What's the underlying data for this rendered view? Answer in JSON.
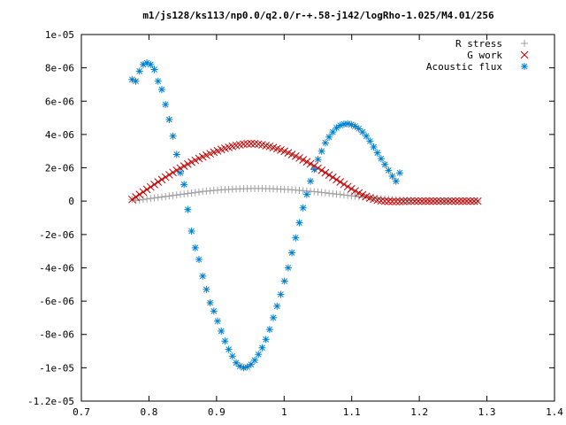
{
  "chart_data": {
    "type": "scatter",
    "title": "m1/js128/ks113/np0.0/q2.0/r-+.58-j142/logRho-1.025/M4.01/256",
    "xlabel": "",
    "ylabel": "",
    "xlim": [
      0.7,
      1.4
    ],
    "ylim": [
      -1.2e-05,
      1e-05
    ],
    "x_ticks": [
      0.7,
      0.8,
      0.9,
      1.0,
      1.1,
      1.2,
      1.3,
      1.4
    ],
    "x_tick_labels": [
      "0.7",
      "0.8",
      "0.9",
      "1",
      "1.1",
      "1.2",
      "1.3",
      "1.4"
    ],
    "y_ticks": [
      -1.2e-05,
      -1e-05,
      -8e-06,
      -6e-06,
      -4e-06,
      -2e-06,
      0,
      2e-06,
      4e-06,
      6e-06,
      8e-06,
      1e-05
    ],
    "y_tick_labels": [
      "-1.2e-05",
      "-1e-05",
      "-8e-06",
      "-6e-06",
      "-4e-06",
      "-2e-06",
      "0",
      "2e-06",
      "4e-06",
      "6e-06",
      "8e-06",
      "1e-05"
    ],
    "grid": false,
    "legend_position": "top-right",
    "x_start": 0.775,
    "x_step": 0.0055,
    "series": [
      {
        "name": "R stress",
        "marker": "plus",
        "color": "#a0a0a0",
        "values": [
          1e-07,
          4e-08,
          7e-08,
          1e-07,
          1.3e-07,
          1.6e-07,
          1.9e-07,
          2.2e-07,
          2.5e-07,
          2.8e-07,
          3.1e-07,
          3.4e-07,
          3.7e-07,
          4e-07,
          4.3e-07,
          4.6e-07,
          4.9e-07,
          5.2e-07,
          5.5e-07,
          5.8e-07,
          6e-07,
          6.2e-07,
          6.4e-07,
          6.6e-07,
          6.8e-07,
          6.9e-07,
          7.1e-07,
          7.2e-07,
          7.3e-07,
          7.4e-07,
          7.5e-07,
          7.5e-07,
          7.6e-07,
          7.6e-07,
          7.6e-07,
          7.6e-07,
          7.5e-07,
          7.5e-07,
          7.4e-07,
          7.3e-07,
          7.2e-07,
          7.1e-07,
          7e-07,
          6.8e-07,
          6.7e-07,
          6.5e-07,
          6.3e-07,
          6.1e-07,
          5.9e-07,
          5.7e-07,
          5.5e-07,
          5.2e-07,
          5e-07,
          4.7e-07,
          4.5e-07,
          4.2e-07,
          4e-07,
          3.7e-07,
          3.5e-07,
          3.2e-07,
          3e-07,
          2.7e-07,
          2.5e-07,
          2.3e-07,
          2.1e-07,
          1.9e-07,
          1.7e-07,
          1.5e-07,
          1.3e-07,
          1.2e-07,
          1e-07,
          9e-08,
          8e-08,
          6e-08,
          5e-08,
          4e-08,
          3e-08,
          2e-08,
          1e-08,
          0.0,
          0.0,
          0.0,
          0.0,
          0.0,
          0.0,
          0.0,
          0.0,
          0.0,
          0.0,
          0.0,
          0.0,
          0.0,
          0.0,
          0.0
        ]
      },
      {
        "name": "G work",
        "marker": "cross",
        "color": "#c00000",
        "values": [
          1e-07,
          2.5e-07,
          4e-07,
          5.5e-07,
          7e-07,
          8.5e-07,
          1e-06,
          1.15e-06,
          1.3e-06,
          1.44e-06,
          1.58e-06,
          1.72e-06,
          1.85e-06,
          1.98e-06,
          2.1e-06,
          2.22e-06,
          2.34e-06,
          2.45e-06,
          2.56e-06,
          2.66e-06,
          2.76e-06,
          2.85e-06,
          2.94e-06,
          3.02e-06,
          3.1e-06,
          3.17e-06,
          3.23e-06,
          3.29e-06,
          3.34e-06,
          3.38e-06,
          3.42e-06,
          3.44e-06,
          3.45e-06,
          3.44e-06,
          3.42e-06,
          3.38e-06,
          3.33e-06,
          3.28e-06,
          3.22e-06,
          3.15e-06,
          3.07e-06,
          2.99e-06,
          2.9e-06,
          2.8e-06,
          2.7e-06,
          2.59e-06,
          2.48e-06,
          2.36e-06,
          2.24e-06,
          2.11e-06,
          1.98e-06,
          1.85e-06,
          1.71e-06,
          1.57e-06,
          1.43e-06,
          1.29e-06,
          1.15e-06,
          1.01e-06,
          8.7e-07,
          7.4e-07,
          6.1e-07,
          4.9e-07,
          3.8e-07,
          2.8e-07,
          1.9e-07,
          1.2e-07,
          6e-08,
          2e-08,
          0.0,
          -1e-08,
          -2e-08,
          -2e-08,
          -2e-08,
          -1e-08,
          0.0,
          0.0,
          0.0,
          0.0,
          0.0,
          0.0,
          0.0,
          0.0,
          0.0,
          0.0,
          0.0,
          0.0,
          0.0,
          0.0,
          0.0,
          0.0,
          0.0,
          0.0,
          0.0,
          0.0
        ]
      },
      {
        "name": "Acoustic flux",
        "marker": "star",
        "color": "#0080d0",
        "values": [
          7.3e-06,
          7.2e-06,
          7.8e-06,
          8.2e-06,
          8.3e-06,
          8.2e-06,
          7.9e-06,
          7.2e-06,
          6.7e-06,
          5.8e-06,
          4.9e-06,
          3.9e-06,
          2.8e-06,
          1.7e-06,
          1e-06,
          -5e-07,
          -1.8e-06,
          -2.8e-06,
          -3.5e-06,
          -4.5e-06,
          -5.3e-06,
          -6.1e-06,
          -6.6e-06,
          -7.2e-06,
          -7.8e-06,
          -8.4e-06,
          -8.9e-06,
          -9.3e-06,
          -9.7e-06,
          -9.9e-06,
          -1e-05,
          -9.95e-06,
          -9.8e-06,
          -9.55e-06,
          -9.2e-06,
          -8.8e-06,
          -8.3e-06,
          -7.7e-06,
          -7e-06,
          -6.3e-06,
          -5.6e-06,
          -4.8e-06,
          -4e-06,
          -3.1e-06,
          -2.2e-06,
          -1.3e-06,
          -4e-07,
          4e-07,
          1.2e-06,
          1.9e-06,
          2.5e-06,
          3e-06,
          3.5e-06,
          3.85e-06,
          4.15e-06,
          4.4e-06,
          4.55e-06,
          4.62e-06,
          4.65e-06,
          4.6e-06,
          4.5e-06,
          4.35e-06,
          4.15e-06,
          3.9e-06,
          3.6e-06,
          3.25e-06,
          2.9e-06,
          2.55e-06,
          2.2e-06,
          1.85e-06,
          1.5e-06,
          1.2e-06,
          1.7e-06
        ]
      }
    ]
  }
}
